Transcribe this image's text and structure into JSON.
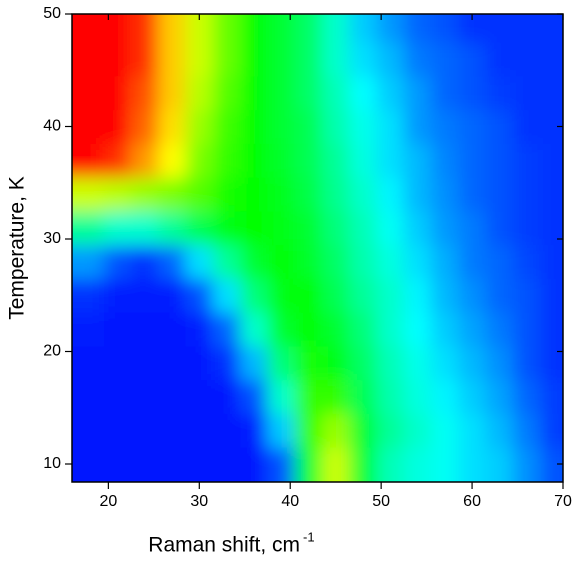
{
  "chart_data": {
    "type": "heatmap",
    "xlabel": "Raman shift, cm",
    "xlabel_superscript": "-1",
    "ylabel": "Temperature, K",
    "xlim": [
      16,
      70
    ],
    "xticks": [
      20,
      30,
      40,
      50,
      60,
      70
    ],
    "ylim": [
      8.4,
      50
    ],
    "yticks": [
      10,
      20,
      30,
      40,
      50
    ],
    "colorscale": [
      "#0000ff",
      "#00ffff",
      "#00ff00",
      "#ffff00",
      "#ff0000"
    ],
    "zlim": [
      0,
      1
    ],
    "x": [
      18,
      21,
      24,
      27,
      30,
      33,
      36,
      39,
      42,
      45,
      48,
      51,
      54,
      57,
      60,
      63,
      66,
      69
    ],
    "y": [
      10,
      13,
      16,
      19,
      22,
      25,
      28,
      31,
      34,
      37,
      40,
      43,
      46,
      49
    ],
    "z": [
      [
        0.02,
        0.02,
        0.02,
        0.02,
        0.02,
        0.02,
        0.02,
        0.08,
        0.45,
        0.7,
        0.45,
        0.32,
        0.28,
        0.26,
        0.22,
        0.2,
        0.14,
        0.08
      ],
      [
        0.02,
        0.02,
        0.02,
        0.02,
        0.02,
        0.02,
        0.03,
        0.2,
        0.55,
        0.65,
        0.45,
        0.35,
        0.3,
        0.26,
        0.22,
        0.18,
        0.12,
        0.06
      ],
      [
        0.02,
        0.02,
        0.02,
        0.02,
        0.02,
        0.02,
        0.08,
        0.3,
        0.55,
        0.55,
        0.42,
        0.33,
        0.28,
        0.24,
        0.2,
        0.16,
        0.1,
        0.06
      ],
      [
        0.02,
        0.02,
        0.02,
        0.02,
        0.02,
        0.05,
        0.18,
        0.38,
        0.52,
        0.48,
        0.4,
        0.32,
        0.27,
        0.22,
        0.18,
        0.14,
        0.08,
        0.05
      ],
      [
        0.03,
        0.02,
        0.02,
        0.02,
        0.03,
        0.1,
        0.3,
        0.45,
        0.5,
        0.45,
        0.38,
        0.3,
        0.25,
        0.2,
        0.16,
        0.12,
        0.08,
        0.05
      ],
      [
        0.05,
        0.03,
        0.03,
        0.03,
        0.08,
        0.22,
        0.38,
        0.48,
        0.5,
        0.42,
        0.35,
        0.3,
        0.24,
        0.18,
        0.14,
        0.1,
        0.08,
        0.05
      ],
      [
        0.15,
        0.08,
        0.05,
        0.1,
        0.22,
        0.35,
        0.45,
        0.5,
        0.46,
        0.4,
        0.33,
        0.28,
        0.22,
        0.17,
        0.12,
        0.1,
        0.07,
        0.05
      ],
      [
        0.35,
        0.3,
        0.3,
        0.35,
        0.42,
        0.48,
        0.5,
        0.48,
        0.45,
        0.38,
        0.32,
        0.26,
        0.2,
        0.15,
        0.12,
        0.08,
        0.06,
        0.05
      ],
      [
        0.7,
        0.68,
        0.65,
        0.62,
        0.58,
        0.52,
        0.5,
        0.47,
        0.43,
        0.36,
        0.3,
        0.24,
        0.18,
        0.14,
        0.1,
        0.08,
        0.06,
        0.05
      ],
      [
        1,
        0.95,
        0.85,
        0.75,
        0.62,
        0.55,
        0.5,
        0.46,
        0.42,
        0.35,
        0.28,
        0.22,
        0.18,
        0.13,
        0.1,
        0.08,
        0.06,
        0.05
      ],
      [
        1,
        1,
        0.9,
        0.78,
        0.65,
        0.56,
        0.5,
        0.45,
        0.42,
        0.33,
        0.27,
        0.22,
        0.15,
        0.12,
        0.1,
        0.08,
        0.05,
        0.05
      ],
      [
        1,
        1,
        0.92,
        0.8,
        0.68,
        0.58,
        0.5,
        0.45,
        0.4,
        0.32,
        0.25,
        0.2,
        0.15,
        0.1,
        0.08,
        0.06,
        0.05,
        0.05
      ],
      [
        1,
        1,
        0.95,
        0.8,
        0.7,
        0.6,
        0.5,
        0.45,
        0.4,
        0.3,
        0.22,
        0.18,
        0.12,
        0.1,
        0.08,
        0.05,
        0.05,
        0.05
      ],
      [
        1,
        1,
        0.95,
        0.8,
        0.7,
        0.6,
        0.5,
        0.45,
        0.4,
        0.3,
        0.2,
        0.15,
        0.1,
        0.08,
        0.05,
        0.05,
        0.05,
        0.05
      ]
    ]
  }
}
